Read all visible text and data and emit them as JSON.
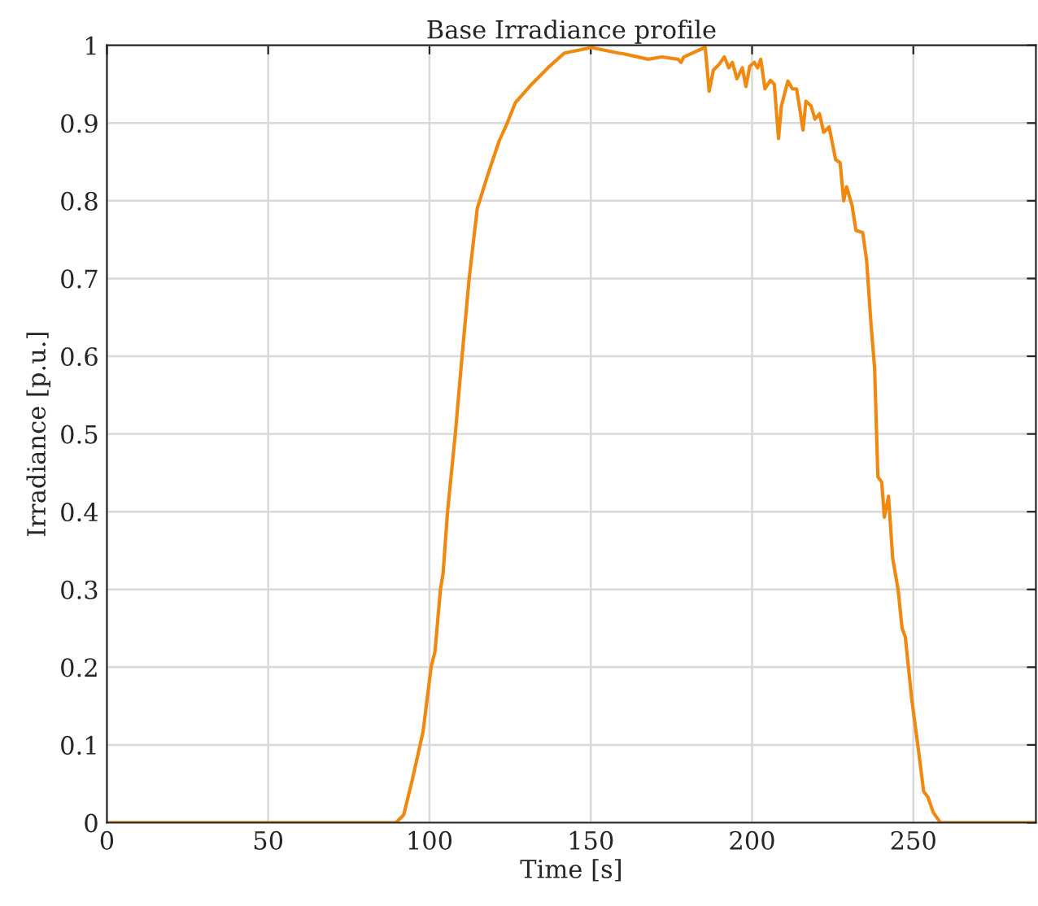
{
  "chart_data": {
    "type": "line",
    "title": "Base Irradiance profile",
    "xlabel": "Time [s]",
    "ylabel": "Irradiance [p.u.]",
    "xlim": [
      0,
      288
    ],
    "ylim": [
      0,
      1
    ],
    "xticks": [
      0,
      50,
      100,
      150,
      200,
      250
    ],
    "yticks": [
      0,
      0.1,
      0.2,
      0.3,
      0.4,
      0.5,
      0.6,
      0.7,
      0.8,
      0.9,
      1
    ],
    "grid": true,
    "marker": "none",
    "line_style": "solid",
    "series": [
      {
        "color": "#f0890f",
        "x": [
          0,
          89.6,
          92,
          94.6,
          98,
          100.5,
          101.7,
          103.4,
          104.2,
          105.6,
          108,
          110.1,
          112.3,
          114.8,
          118.2,
          121.6,
          124.1,
          126.6,
          131.7,
          136.7,
          141.8,
          150.2,
          158.6,
          160.3,
          167.8,
          172,
          177.1,
          178,
          178.8,
          184.7,
          185.5,
          186.7,
          188,
          189.7,
          191.4,
          192.8,
          193.9,
          195.3,
          197,
          198.1,
          199.3,
          200.7,
          201.7,
          202.7,
          204,
          205.7,
          206.9,
          208.2,
          209.1,
          211.1,
          212.5,
          213.8,
          214.5,
          215.8,
          216.7,
          218.3,
          219.5,
          220.9,
          222.2,
          223.9,
          225.9,
          227.3,
          228.4,
          229.3,
          231,
          232.2,
          234.3,
          235.5,
          236.9,
          238,
          239,
          240.2,
          241,
          242.3,
          243.6,
          245.3,
          246.5,
          247.5,
          249.5,
          251.5,
          253.2,
          254.5,
          256.2,
          258.4,
          288
        ],
        "values": [
          0,
          0,
          0.01,
          0.054,
          0.117,
          0.2,
          0.22,
          0.3,
          0.32,
          0.4,
          0.5,
          0.6,
          0.7,
          0.79,
          0.835,
          0.877,
          0.9,
          0.926,
          0.95,
          0.971,
          0.99,
          0.997,
          0.99,
          0.989,
          0.982,
          0.985,
          0.982,
          0.978,
          0.985,
          0.996,
          0.997,
          0.941,
          0.968,
          0.975,
          0.985,
          0.971,
          0.978,
          0.957,
          0.971,
          0.947,
          0.973,
          0.978,
          0.971,
          0.982,
          0.944,
          0.955,
          0.95,
          0.88,
          0.922,
          0.954,
          0.944,
          0.944,
          0.926,
          0.891,
          0.928,
          0.922,
          0.905,
          0.912,
          0.888,
          0.895,
          0.853,
          0.849,
          0.8,
          0.818,
          0.794,
          0.762,
          0.759,
          0.724,
          0.64,
          0.584,
          0.445,
          0.438,
          0.393,
          0.42,
          0.34,
          0.299,
          0.25,
          0.239,
          0.159,
          0.096,
          0.04,
          0.033,
          0.013,
          0,
          0
        ]
      }
    ]
  }
}
